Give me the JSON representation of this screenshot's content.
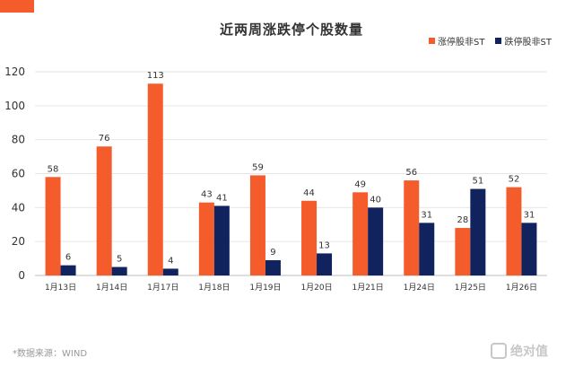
{
  "title": "近两周涨跌停个股数量",
  "source": "*数据来源：WIND",
  "watermark": "绝对值",
  "colors": {
    "accent": "#f55c2b",
    "series_up": "#f55c2b",
    "series_down": "#10235e",
    "grid": "#e6e6e6"
  },
  "chart_data": {
    "type": "bar",
    "title": "近两周涨跌停个股数量",
    "categories": [
      "1月13日",
      "1月14日",
      "1月17日",
      "1月18日",
      "1月19日",
      "1月20日",
      "1月21日",
      "1月24日",
      "1月25日",
      "1月26日"
    ],
    "series": [
      {
        "name": "涨停股非ST",
        "color": "#f55c2b",
        "values": [
          58,
          76,
          113,
          43,
          59,
          44,
          49,
          56,
          28,
          52
        ]
      },
      {
        "name": "跌停股非ST",
        "color": "#10235e",
        "values": [
          6,
          5,
          4,
          41,
          9,
          13,
          40,
          31,
          51,
          31
        ]
      }
    ],
    "yticks": [
      0,
      20,
      40,
      60,
      80,
      100,
      120
    ],
    "ylim": [
      0,
      120
    ],
    "grid": true,
    "legend_position": "top-right"
  }
}
